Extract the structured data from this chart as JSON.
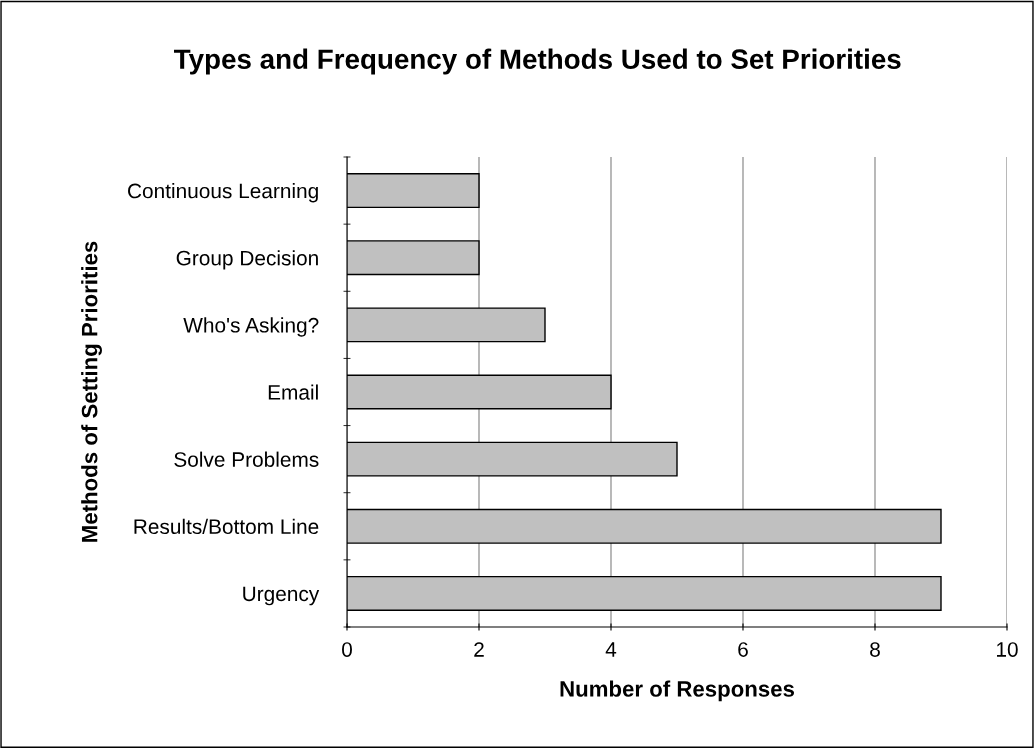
{
  "chart_data": {
    "type": "bar",
    "orientation": "horizontal",
    "title": "Types and Frequency of Methods Used to Set Priorities",
    "xlabel": "Number of Responses",
    "ylabel": "Methods of Setting Priorities",
    "categories": [
      "Continuous Learning",
      "Group Decision",
      "Who's Asking?",
      "Email",
      "Solve Problems",
      "Results/Bottom Line",
      "Urgency"
    ],
    "values": [
      2,
      2,
      3,
      4,
      5,
      9,
      9
    ],
    "color": "#c0c0c0",
    "xlim": [
      0,
      10
    ],
    "xticks": [
      0,
      2,
      4,
      6,
      8,
      10
    ],
    "grid": "x",
    "legend": false
  }
}
